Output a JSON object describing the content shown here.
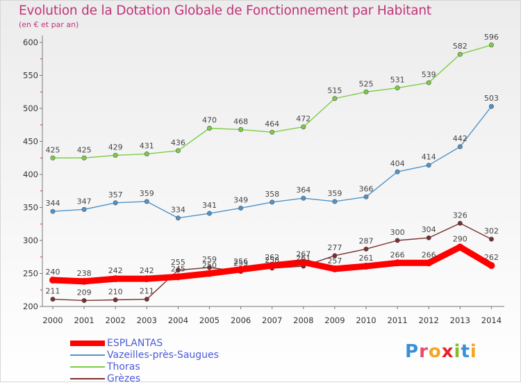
{
  "header": {
    "title": "Evolution de la Dotation Globale de Fonctionnement par Habitant",
    "subtitle": "(en € et par an)"
  },
  "logo": {
    "text": "Proxiti",
    "letters": [
      "P",
      "r",
      "o",
      "x",
      "i",
      "t",
      "i"
    ],
    "letter_colors": [
      "#3a8fd9",
      "#e94b6b",
      "#f2a626",
      "#e2232b",
      "#7fbf2a",
      "#3a8fd9",
      "#f2a626"
    ]
  },
  "chart_data": {
    "type": "line",
    "title": "Evolution de la Dotation Globale de Fonctionnement par Habitant",
    "subtitle": "(en € et par an)",
    "x": [
      "2000",
      "2001",
      "2002",
      "2003",
      "2004",
      "2005",
      "2006",
      "2007",
      "2008",
      "2009",
      "2010",
      "2011",
      "2012",
      "2013",
      "2014"
    ],
    "ylim": [
      200,
      600
    ],
    "yticks": [
      200,
      250,
      300,
      350,
      400,
      450,
      500,
      550,
      600
    ],
    "grid": false,
    "legend_position": "bottom-left",
    "series": [
      {
        "name": "ESPLANTAS",
        "color": "#ff0000",
        "values": [
          240,
          238,
          242,
          242,
          245,
          250,
          256,
          262,
          267,
          257,
          261,
          266,
          266,
          290,
          262
        ]
      },
      {
        "name": "Vazeilles-près-Saugues",
        "color": "#4f93c9",
        "values": [
          344,
          347,
          357,
          359,
          334,
          341,
          349,
          358,
          364,
          359,
          366,
          404,
          414,
          442,
          503
        ]
      },
      {
        "name": "Thoras",
        "color": "#7ccc44",
        "values": [
          425,
          425,
          429,
          431,
          436,
          470,
          468,
          464,
          472,
          515,
          525,
          531,
          539,
          582,
          596
        ]
      },
      {
        "name": "Grèzes",
        "color": "#7a2e2e",
        "values": [
          211,
          209,
          210,
          211,
          255,
          259,
          253,
          258,
          261,
          277,
          287,
          300,
          304,
          326,
          302
        ]
      }
    ]
  }
}
